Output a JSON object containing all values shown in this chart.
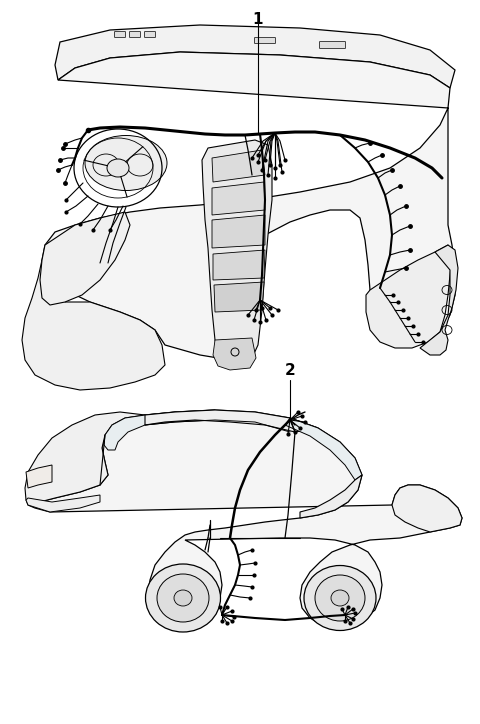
{
  "background_color": "#ffffff",
  "fig_width": 4.8,
  "fig_height": 7.24,
  "dpi": 100,
  "label1": "1",
  "label2": "2",
  "lc": "#000000",
  "lc_light": "#555555",
  "label_fontsize": 11
}
